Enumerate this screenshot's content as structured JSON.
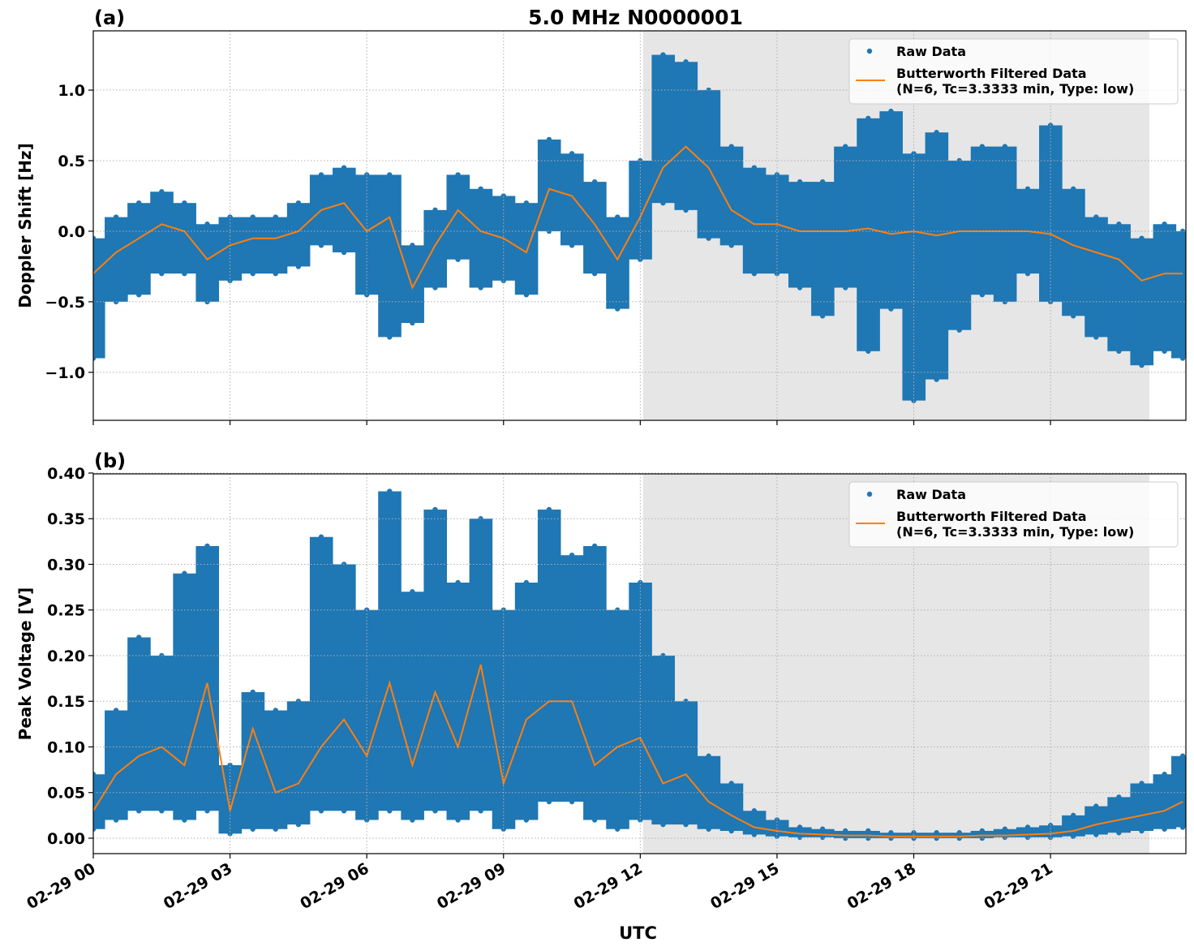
{
  "chart_data": [
    {
      "type": "scatter",
      "panel_label": "(a)",
      "title": "5.0 MHz N0000001",
      "ylabel": "Doppler Shift [Hz]",
      "xlim": [
        0,
        23.97
      ],
      "ylim": [
        -1.34,
        1.42
      ],
      "xticks": [
        0,
        3,
        6,
        9,
        12,
        15,
        18,
        21
      ],
      "yticks": [
        {
          "value": -1.0,
          "label": "−1.0"
        },
        {
          "value": -0.5,
          "label": "−0.5"
        },
        {
          "value": 0.0,
          "label": "0.0"
        },
        {
          "value": 0.5,
          "label": "0.5"
        },
        {
          "value": 1.0,
          "label": "1.0"
        }
      ],
      "grid": true,
      "legend": "upper right",
      "shade": [
        12.06,
        23.17
      ],
      "shade_color": "#e6e6e6",
      "series": [
        {
          "name": "Raw Data",
          "color": "#1f77b4",
          "style": "points",
          "x": [
            0,
            0.5,
            1,
            1.5,
            2,
            2.5,
            3,
            3.5,
            4,
            4.5,
            5,
            5.5,
            6,
            6.5,
            7,
            7.5,
            8,
            8.5,
            9,
            9.5,
            10,
            10.5,
            11,
            11.5,
            12,
            12.5,
            13,
            13.5,
            14,
            14.5,
            15,
            15.5,
            16,
            16.5,
            17,
            17.5,
            18,
            18.5,
            19,
            19.5,
            20,
            20.5,
            21,
            21.5,
            22,
            22.5,
            23,
            23.5,
            23.9
          ],
          "upper": [
            -0.05,
            0.1,
            0.2,
            0.28,
            0.2,
            0.05,
            0.1,
            0.1,
            0.1,
            0.2,
            0.4,
            0.45,
            0.4,
            0.4,
            -0.1,
            0.15,
            0.4,
            0.3,
            0.25,
            0.2,
            0.65,
            0.55,
            0.35,
            0.1,
            0.5,
            1.25,
            1.2,
            1.0,
            0.6,
            0.45,
            0.4,
            0.35,
            0.35,
            0.6,
            0.8,
            0.85,
            0.55,
            0.7,
            0.5,
            0.6,
            0.6,
            0.3,
            0.75,
            0.3,
            0.1,
            0.05,
            -0.05,
            0.05,
            0.0
          ],
          "lower": [
            -0.9,
            -0.5,
            -0.45,
            -0.3,
            -0.3,
            -0.5,
            -0.35,
            -0.3,
            -0.3,
            -0.25,
            -0.1,
            -0.15,
            -0.45,
            -0.75,
            -0.65,
            -0.4,
            -0.2,
            -0.4,
            -0.35,
            -0.45,
            0.0,
            -0.1,
            -0.3,
            -0.55,
            -0.2,
            0.2,
            0.15,
            -0.05,
            -0.1,
            -0.3,
            -0.3,
            -0.4,
            -0.6,
            -0.4,
            -0.85,
            -0.55,
            -1.2,
            -1.05,
            -0.7,
            -0.45,
            -0.5,
            -0.3,
            -0.5,
            -0.6,
            -0.75,
            -0.85,
            -0.95,
            -0.85,
            -0.9
          ]
        },
        {
          "name": "Butterworth Filtered Data\n(N=6, Tc=3.3333 min, Type: low)",
          "color": "#ff7f0e",
          "style": "line",
          "x": [
            0,
            0.5,
            1,
            1.5,
            2,
            2.5,
            3,
            3.5,
            4,
            4.5,
            5,
            5.5,
            6,
            6.5,
            7,
            7.5,
            8,
            8.5,
            9,
            9.5,
            10,
            10.5,
            11,
            11.5,
            12,
            12.5,
            13,
            13.5,
            14,
            14.5,
            15,
            15.5,
            16,
            16.5,
            17,
            17.5,
            18,
            18.5,
            19,
            19.5,
            20,
            20.5,
            21,
            21.5,
            22,
            22.5,
            23,
            23.5,
            23.9
          ],
          "values": [
            -0.3,
            -0.15,
            -0.05,
            0.05,
            0.0,
            -0.2,
            -0.1,
            -0.05,
            -0.05,
            0.0,
            0.15,
            0.2,
            0.0,
            0.1,
            -0.4,
            -0.1,
            0.15,
            0.0,
            -0.05,
            -0.15,
            0.3,
            0.25,
            0.05,
            -0.2,
            0.1,
            0.45,
            0.6,
            0.45,
            0.15,
            0.05,
            0.05,
            0.0,
            0.0,
            0.0,
            0.02,
            -0.02,
            0.0,
            -0.03,
            0.0,
            0.0,
            0.0,
            0.0,
            -0.02,
            -0.1,
            -0.15,
            -0.2,
            -0.35,
            -0.3,
            -0.3
          ]
        }
      ]
    },
    {
      "type": "scatter",
      "panel_label": "(b)",
      "ylabel": "Peak Voltage [V]",
      "xlabel": "UTC",
      "xlim": [
        0,
        23.97
      ],
      "ylim": [
        -0.0169,
        0.3991
      ],
      "xticks": [
        {
          "value": 0,
          "label": "02-29 00"
        },
        {
          "value": 3,
          "label": "02-29 03"
        },
        {
          "value": 6,
          "label": "02-29 06"
        },
        {
          "value": 9,
          "label": "02-29 09"
        },
        {
          "value": 12,
          "label": "02-29 12"
        },
        {
          "value": 15,
          "label": "02-29 15"
        },
        {
          "value": 18,
          "label": "02-29 18"
        },
        {
          "value": 21,
          "label": "02-29 21"
        }
      ],
      "yticks": [
        {
          "value": 0.0,
          "label": "0.00"
        },
        {
          "value": 0.05,
          "label": "0.05"
        },
        {
          "value": 0.1,
          "label": "0.10"
        },
        {
          "value": 0.15,
          "label": "0.15"
        },
        {
          "value": 0.2,
          "label": "0.20"
        },
        {
          "value": 0.25,
          "label": "0.25"
        },
        {
          "value": 0.3,
          "label": "0.30"
        },
        {
          "value": 0.35,
          "label": "0.35"
        },
        {
          "value": 0.4,
          "label": "0.40"
        }
      ],
      "grid": true,
      "legend": "upper right",
      "shade": [
        12.06,
        23.17
      ],
      "shade_color": "#e6e6e6",
      "series": [
        {
          "name": "Raw Data",
          "color": "#1f77b4",
          "style": "points",
          "x": [
            0,
            0.5,
            1,
            1.5,
            2,
            2.5,
            3,
            3.5,
            4,
            4.5,
            5,
            5.5,
            6,
            6.5,
            7,
            7.5,
            8,
            8.5,
            9,
            9.5,
            10,
            10.5,
            11,
            11.5,
            12,
            12.5,
            13,
            13.5,
            14,
            14.5,
            15,
            15.5,
            16,
            16.5,
            17,
            17.5,
            18,
            18.5,
            19,
            19.5,
            20,
            20.5,
            21,
            21.5,
            22,
            22.5,
            23,
            23.5,
            23.9
          ],
          "upper": [
            0.07,
            0.14,
            0.22,
            0.2,
            0.29,
            0.32,
            0.08,
            0.16,
            0.14,
            0.15,
            0.33,
            0.3,
            0.25,
            0.38,
            0.27,
            0.36,
            0.28,
            0.35,
            0.25,
            0.28,
            0.36,
            0.31,
            0.32,
            0.25,
            0.28,
            0.2,
            0.15,
            0.09,
            0.06,
            0.03,
            0.02,
            0.012,
            0.01,
            0.008,
            0.008,
            0.006,
            0.006,
            0.006,
            0.006,
            0.008,
            0.01,
            0.012,
            0.014,
            0.025,
            0.035,
            0.045,
            0.06,
            0.07,
            0.09
          ],
          "lower": [
            0.01,
            0.02,
            0.03,
            0.03,
            0.02,
            0.03,
            0.005,
            0.01,
            0.01,
            0.015,
            0.03,
            0.03,
            0.02,
            0.03,
            0.02,
            0.03,
            0.02,
            0.03,
            0.01,
            0.02,
            0.04,
            0.04,
            0.02,
            0.01,
            0.02,
            0.015,
            0.015,
            0.01,
            0.008,
            0.004,
            0.002,
            0.001,
            0.001,
            0.0,
            0.0,
            0.0,
            0.0,
            0.0,
            0.0,
            0.0,
            0.001,
            0.001,
            0.001,
            0.002,
            0.004,
            0.006,
            0.008,
            0.01,
            0.012
          ]
        },
        {
          "name": "Butterworth Filtered Data\n(N=6, Tc=3.3333 min, Type: low)",
          "color": "#ff7f0e",
          "style": "line",
          "x": [
            0,
            0.5,
            1,
            1.5,
            2,
            2.5,
            3,
            3.5,
            4,
            4.5,
            5,
            5.5,
            6,
            6.5,
            7,
            7.5,
            8,
            8.5,
            9,
            9.5,
            10,
            10.5,
            11,
            11.5,
            12,
            12.5,
            13,
            13.5,
            14,
            14.5,
            15,
            15.5,
            16,
            16.5,
            17,
            17.5,
            18,
            18.5,
            19,
            19.5,
            20,
            20.5,
            21,
            21.5,
            22,
            22.5,
            23,
            23.5,
            23.9
          ],
          "values": [
            0.03,
            0.07,
            0.09,
            0.1,
            0.08,
            0.17,
            0.03,
            0.12,
            0.05,
            0.06,
            0.1,
            0.13,
            0.09,
            0.17,
            0.08,
            0.16,
            0.1,
            0.19,
            0.06,
            0.13,
            0.15,
            0.15,
            0.08,
            0.1,
            0.11,
            0.06,
            0.07,
            0.04,
            0.025,
            0.012,
            0.008,
            0.005,
            0.004,
            0.003,
            0.003,
            0.002,
            0.002,
            0.002,
            0.002,
            0.003,
            0.003,
            0.004,
            0.005,
            0.008,
            0.015,
            0.02,
            0.025,
            0.03,
            0.04
          ]
        }
      ]
    }
  ]
}
